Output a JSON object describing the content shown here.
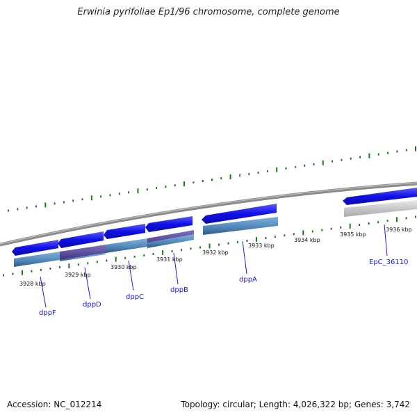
{
  "title": "Erwinia pyrifoliae Ep1/96 chromosome, complete genome",
  "footer": {
    "accession": "Accession: NC_012214",
    "summary": "Topology: circular; Length: 4,026,322 bp; Genes: 3,742"
  },
  "scale_labels": [
    "3928 kbp",
    "3929 kbp",
    "3930 kbp",
    "3931 kbp",
    "3932 kbp",
    "3933 kbp",
    "3934 kbp",
    "3935 kbp",
    "3936 kbp"
  ],
  "genes": [
    "dppF",
    "dppD",
    "dppC",
    "dppB",
    "dppA",
    "EpC_36110"
  ],
  "colors": {
    "gene_arrow": "#1010e6",
    "cds_bar": "#4f86b8",
    "cds_bar_dark": "#5a4a9a",
    "gray_gene": "#c8c8c8",
    "backbone": "#888888",
    "tick_green": "#1a7a1a",
    "label_blue": "#1a1adb"
  }
}
